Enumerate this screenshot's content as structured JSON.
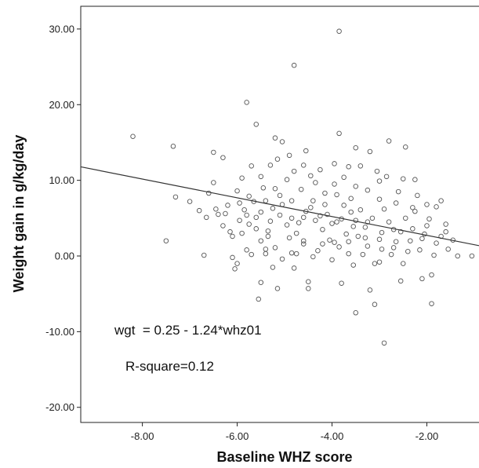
{
  "chart_data": {
    "type": "scatter",
    "xlabel": "Baseline WHZ score",
    "ylabel": "Weight gain in g/kg/day",
    "xlim": [
      -9.3,
      -0.9
    ],
    "ylim": [
      -22.0,
      33.0
    ],
    "x_ticks": [
      -8.0,
      -6.0,
      -4.0,
      -2.0
    ],
    "x_tick_labels": [
      "-8.00",
      "-6.00",
      "-4.00",
      "-2.00"
    ],
    "y_ticks": [
      -20.0,
      -10.0,
      0.0,
      10.0,
      20.0,
      30.0
    ],
    "y_tick_labels": [
      "-20.00",
      "-10.00",
      "0.00",
      "10.00",
      "20.00",
      "30.00"
    ],
    "grid": false,
    "fit_line": {
      "intercept": 0.25,
      "slope": -1.24
    },
    "annotations": [
      "wgt  = 0.25 - 1.24*whz01",
      "R-square=0.12"
    ],
    "colors": {
      "marker": "#555555",
      "line": "#333333",
      "frame": "#222222"
    },
    "points": [
      [
        -8.2,
        15.8
      ],
      [
        -7.35,
        14.5
      ],
      [
        -6.5,
        13.7
      ],
      [
        -6.5,
        9.7
      ],
      [
        -7.0,
        7.2
      ],
      [
        -7.3,
        7.8
      ],
      [
        -6.8,
        6.0
      ],
      [
        -7.5,
        2.0
      ],
      [
        -6.7,
        0.1
      ],
      [
        -6.3,
        4.0
      ],
      [
        -6.15,
        3.2
      ],
      [
        -6.1,
        -0.2
      ],
      [
        -6.0,
        -1.0
      ],
      [
        -6.05,
        -1.7
      ],
      [
        -6.4,
        5.5
      ],
      [
        -6.6,
        8.3
      ],
      [
        -6.3,
        13.0
      ],
      [
        -5.8,
        20.3
      ],
      [
        -5.6,
        17.4
      ],
      [
        -4.8,
        25.2
      ],
      [
        -3.85,
        29.7
      ],
      [
        -5.2,
        15.6
      ],
      [
        -5.05,
        15.1
      ],
      [
        -5.15,
        12.8
      ],
      [
        -4.55,
        13.9
      ],
      [
        -4.9,
        13.3
      ],
      [
        -5.9,
        10.3
      ],
      [
        -5.5,
        10.5
      ],
      [
        -5.45,
        9.0
      ],
      [
        -5.75,
        7.9
      ],
      [
        -5.95,
        7.0
      ],
      [
        -5.65,
        7.2
      ],
      [
        -5.85,
        6.1
      ],
      [
        -5.6,
        5.1
      ],
      [
        -5.75,
        4.2
      ],
      [
        -5.9,
        3.0
      ],
      [
        -5.3,
        4.6
      ],
      [
        -5.5,
        2.0
      ],
      [
        -5.7,
        0.2
      ],
      [
        -5.4,
        0.9
      ],
      [
        -5.5,
        -3.5
      ],
      [
        -5.55,
        -5.7
      ],
      [
        -5.15,
        -4.3
      ],
      [
        -5.25,
        -1.5
      ],
      [
        -4.85,
        0.4
      ],
      [
        -4.8,
        -1.6
      ],
      [
        -4.6,
        2.0
      ],
      [
        -4.5,
        -3.4
      ],
      [
        -4.5,
        -4.3
      ],
      [
        -3.8,
        -3.6
      ],
      [
        -3.5,
        -7.5
      ],
      [
        -3.2,
        -4.5
      ],
      [
        -3.1,
        -6.4
      ],
      [
        -2.9,
        -11.5
      ],
      [
        -2.55,
        -3.3
      ],
      [
        -2.1,
        -3.0
      ],
      [
        -1.9,
        -6.3
      ],
      [
        -1.9,
        -2.5
      ],
      [
        -2.5,
        -1.0
      ],
      [
        -3.55,
        -1.2
      ],
      [
        -3.1,
        -1.0
      ],
      [
        -3.85,
        16.2
      ],
      [
        -3.5,
        14.3
      ],
      [
        -3.2,
        13.8
      ],
      [
        -2.8,
        15.2
      ],
      [
        -2.45,
        14.4
      ],
      [
        -3.65,
        11.8
      ],
      [
        -2.85,
        10.5
      ],
      [
        -2.5,
        10.2
      ],
      [
        -2.25,
        10.1
      ],
      [
        -1.7,
        7.3
      ],
      [
        -1.8,
        6.5
      ],
      [
        -2.0,
        6.8
      ],
      [
        -1.6,
        4.2
      ],
      [
        -1.6,
        3.2
      ],
      [
        -1.35,
        0.0
      ],
      [
        -1.55,
        0.9
      ],
      [
        -1.45,
        2.1
      ],
      [
        -1.05,
        0.0
      ],
      [
        -1.8,
        1.7
      ],
      [
        -2.05,
        2.9
      ],
      [
        -2.25,
        5.9
      ],
      [
        -2.45,
        5.0
      ],
      [
        -2.3,
        3.6
      ],
      [
        -2.55,
        3.2
      ],
      [
        -2.8,
        4.5
      ],
      [
        -2.65,
        1.9
      ],
      [
        -2.95,
        0.9
      ],
      [
        -3.3,
        3.8
      ],
      [
        -3.45,
        2.6
      ],
      [
        -3.25,
        1.3
      ],
      [
        -3.7,
        2.9
      ],
      [
        -3.9,
        4.5
      ],
      [
        -3.6,
        5.8
      ],
      [
        -3.0,
        7.5
      ],
      [
        -3.25,
        8.7
      ],
      [
        -3.5,
        9.2
      ],
      [
        -3.95,
        9.5
      ],
      [
        -4.15,
        8.3
      ],
      [
        -4.4,
        7.3
      ],
      [
        -4.65,
        8.8
      ],
      [
        -4.8,
        11.2
      ],
      [
        -4.95,
        10.1
      ],
      [
        -5.1,
        8.0
      ],
      [
        -5.25,
        6.3
      ],
      [
        -5.1,
        5.4
      ],
      [
        -4.95,
        4.1
      ],
      [
        -4.75,
        3.0
      ],
      [
        -4.55,
        5.9
      ],
      [
        -4.35,
        4.7
      ],
      [
        -4.2,
        3.5
      ],
      [
        -4.05,
        2.1
      ],
      [
        -3.85,
        1.2
      ],
      [
        -4.3,
        0.7
      ],
      [
        -4.6,
        1.6
      ],
      [
        -4.9,
        2.4
      ],
      [
        -5.2,
        1.1
      ],
      [
        -5.35,
        3.3
      ],
      [
        -5.05,
        6.8
      ],
      [
        -4.45,
        6.4
      ],
      [
        -4.1,
        5.5
      ],
      [
        -3.75,
        6.7
      ],
      [
        -3.4,
        6.1
      ],
      [
        -3.15,
        5.0
      ],
      [
        -2.9,
        6.2
      ],
      [
        -2.7,
        3.5
      ],
      [
        -3.55,
        3.9
      ],
      [
        -3.8,
        4.9
      ],
      [
        -4.25,
        5.3
      ],
      [
        -4.7,
        4.4
      ],
      [
        -5.5,
        5.8
      ],
      [
        -5.8,
        5.4
      ],
      [
        -6.2,
        6.7
      ],
      [
        -6.45,
        6.2
      ],
      [
        -6.0,
        8.6
      ],
      [
        -5.2,
        8.9
      ],
      [
        -4.35,
        9.7
      ],
      [
        -3.75,
        10.4
      ],
      [
        -3.4,
        11.9
      ],
      [
        -3.05,
        11.2
      ],
      [
        -2.6,
        8.5
      ],
      [
        -2.2,
        8.0
      ],
      [
        -1.95,
        4.9
      ],
      [
        -2.35,
        2.0
      ],
      [
        -2.75,
        0.2
      ],
      [
        -3.0,
        -0.8
      ],
      [
        -3.35,
        0.2
      ],
      [
        -3.65,
        0.3
      ],
      [
        -4.0,
        -0.5
      ],
      [
        -4.4,
        -0.1
      ],
      [
        -4.75,
        0.3
      ],
      [
        -5.05,
        -0.4
      ],
      [
        -5.4,
        0.3
      ],
      [
        -5.8,
        0.8
      ],
      [
        -6.1,
        2.6
      ],
      [
        -5.95,
        4.7
      ],
      [
        -5.6,
        3.6
      ],
      [
        -5.35,
        2.6
      ],
      [
        -4.2,
        1.6
      ],
      [
        -3.95,
        1.8
      ],
      [
        -3.65,
        1.9
      ],
      [
        -3.3,
        2.4
      ],
      [
        -3.0,
        2.2
      ],
      [
        -2.7,
        1.1
      ],
      [
        -2.4,
        0.6
      ],
      [
        -2.15,
        0.8
      ],
      [
        -2.1,
        2.3
      ],
      [
        -1.7,
        2.6
      ],
      [
        -4.6,
        12.0
      ],
      [
        -4.25,
        11.4
      ],
      [
        -3.95,
        12.2
      ],
      [
        -4.45,
        10.6
      ],
      [
        -5.3,
        12.0
      ],
      [
        -5.7,
        11.9
      ],
      [
        -3.0,
        9.9
      ],
      [
        -2.65,
        7.0
      ],
      [
        -2.3,
        6.4
      ],
      [
        -4.15,
        6.8
      ],
      [
        -4.85,
        7.3
      ],
      [
        -5.4,
        7.3
      ],
      [
        -3.6,
        7.6
      ],
      [
        -3.9,
        8.1
      ],
      [
        -4.6,
        5.1
      ],
      [
        -3.25,
        4.5
      ],
      [
        -2.95,
        3.1
      ],
      [
        -2.0,
        4.0
      ],
      [
        -1.85,
        0.1
      ],
      [
        -6.65,
        5.1
      ],
      [
        -6.25,
        5.6
      ],
      [
        -4.0,
        4.3
      ],
      [
        -3.5,
        4.7
      ],
      [
        -4.85,
        5.0
      ]
    ]
  }
}
